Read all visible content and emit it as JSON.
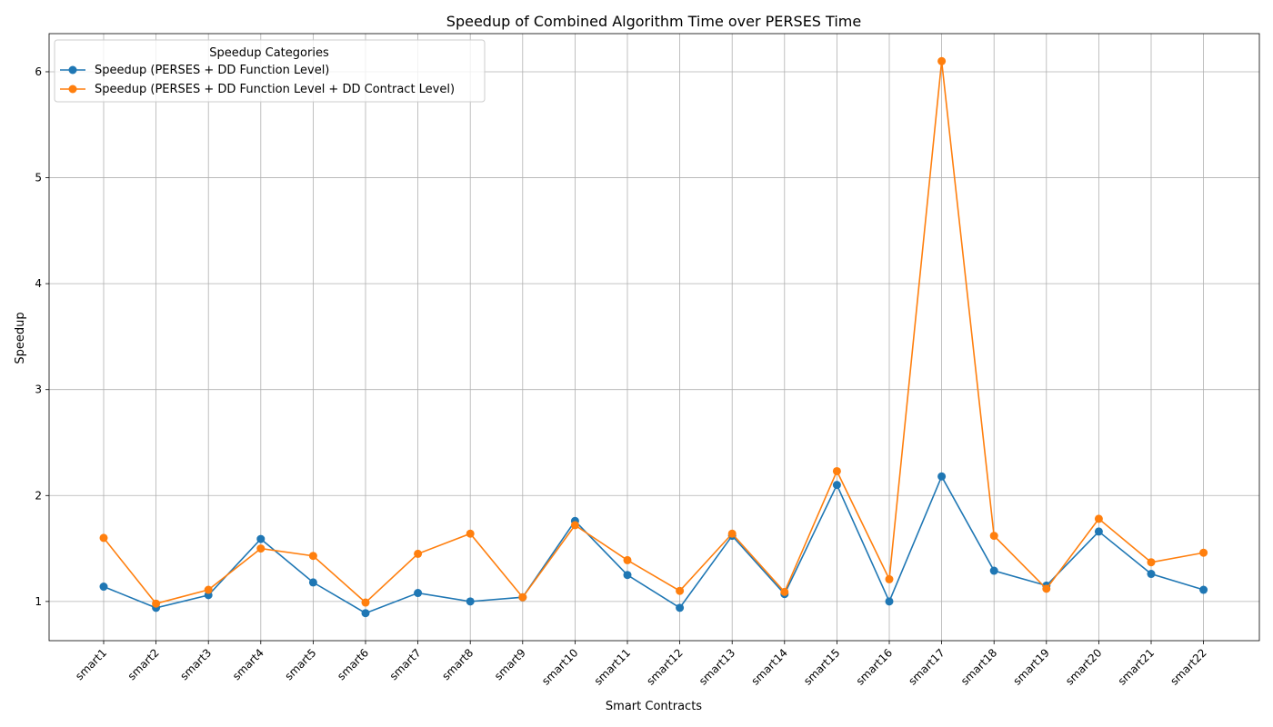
{
  "chart_data": {
    "type": "line",
    "title": "Speedup of Combined Algorithm Time over PERSES Time",
    "xlabel": "Smart Contracts",
    "ylabel": "Speedup",
    "ylim": [
      0.63,
      6.36
    ],
    "yticks": [
      1,
      2,
      3,
      4,
      5,
      6
    ],
    "grid": true,
    "legend_title": "Speedup Categories",
    "legend_position": "top-left",
    "categories": [
      "smart1",
      "smart2",
      "smart3",
      "smart4",
      "smart5",
      "smart6",
      "smart7",
      "smart8",
      "smart9",
      "smart10",
      "smart11",
      "smart12",
      "smart13",
      "smart14",
      "smart15",
      "smart16",
      "smart17",
      "smart18",
      "smart19",
      "smart20",
      "smart21",
      "smart22"
    ],
    "series": [
      {
        "name": "Speedup (PERSES + DD Function Level)",
        "color": "#1f77b4",
        "values": [
          1.14,
          0.94,
          1.06,
          1.59,
          1.18,
          0.89,
          1.08,
          1.0,
          1.04,
          1.76,
          1.25,
          0.94,
          1.62,
          1.07,
          2.1,
          1.0,
          2.18,
          1.29,
          1.15,
          1.66,
          1.26,
          1.11
        ]
      },
      {
        "name": "Speedup (PERSES + DD Function Level + DD Contract Level)",
        "color": "#ff7f0e",
        "values": [
          1.6,
          0.98,
          1.11,
          1.5,
          1.43,
          0.99,
          1.45,
          1.64,
          1.04,
          1.72,
          1.39,
          1.1,
          1.64,
          1.09,
          2.23,
          1.21,
          6.1,
          1.62,
          1.12,
          1.78,
          1.37,
          1.46
        ]
      }
    ]
  }
}
